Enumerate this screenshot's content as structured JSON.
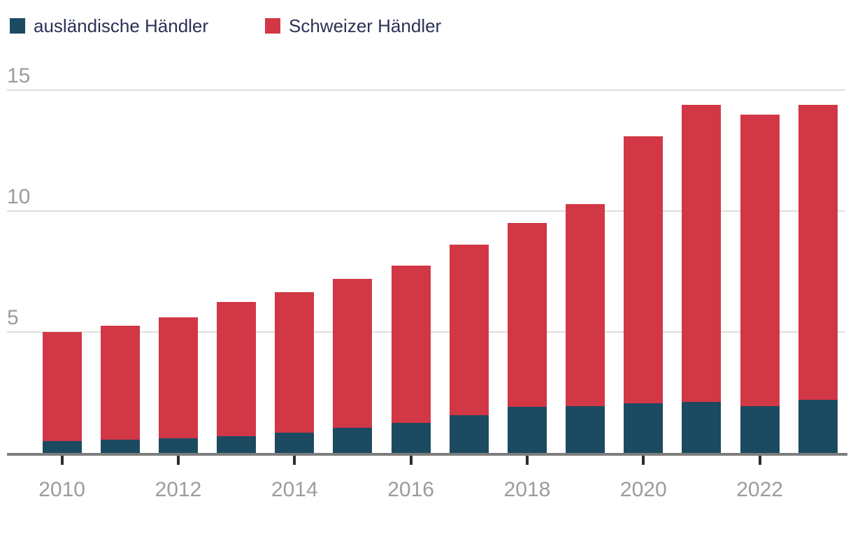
{
  "legend": {
    "items": [
      {
        "label": "ausländische Händler",
        "color": "#1c4a60"
      },
      {
        "label": "Schweizer Händler",
        "color": "#d23745"
      }
    ]
  },
  "axes": {
    "y_ticks": [
      "5",
      "10",
      "15"
    ],
    "x_ticks": [
      "2010",
      "2012",
      "2014",
      "2016",
      "2018",
      "2020",
      "2022"
    ]
  },
  "colors": {
    "foreign_bar": "#1c4a60",
    "swiss_bar": "#d23745",
    "legend_text": "#2b3156",
    "axis_label": "#9c9c9c",
    "gridline": "#dedede",
    "axis_line": "#7d7d7d",
    "tick_mark": "#2d2d2d",
    "background": "#ffffff"
  },
  "chart_data": {
    "type": "bar",
    "stacked": true,
    "title": "",
    "xlabel": "",
    "ylabel": "",
    "categories": [
      2010,
      2011,
      2012,
      2013,
      2014,
      2015,
      2016,
      2017,
      2018,
      2019,
      2020,
      2021,
      2022,
      2023
    ],
    "series": [
      {
        "name": "ausländische Händler",
        "color": "#1c4a60",
        "values": [
          0.5,
          0.55,
          0.6,
          0.7,
          0.85,
          1.05,
          1.25,
          1.55,
          1.9,
          1.95,
          2.05,
          2.1,
          1.95,
          2.2
        ]
      },
      {
        "name": "Schweizer Händler",
        "color": "#d23745",
        "values": [
          4.5,
          4.7,
          5.0,
          5.55,
          5.8,
          6.15,
          6.5,
          7.05,
          7.6,
          8.35,
          11.05,
          12.3,
          12.05,
          12.2
        ]
      }
    ],
    "totals": [
      5.0,
      5.25,
      5.6,
      6.25,
      6.65,
      7.2,
      7.75,
      8.6,
      9.5,
      10.3,
      13.1,
      14.4,
      14.0,
      14.4
    ],
    "ylim": [
      0,
      15
    ],
    "yticks": [
      5,
      10,
      15
    ],
    "xtick_years": [
      2010,
      2012,
      2014,
      2016,
      2018,
      2020,
      2022
    ],
    "grid": "horizontal",
    "legend_position": "top-left"
  }
}
